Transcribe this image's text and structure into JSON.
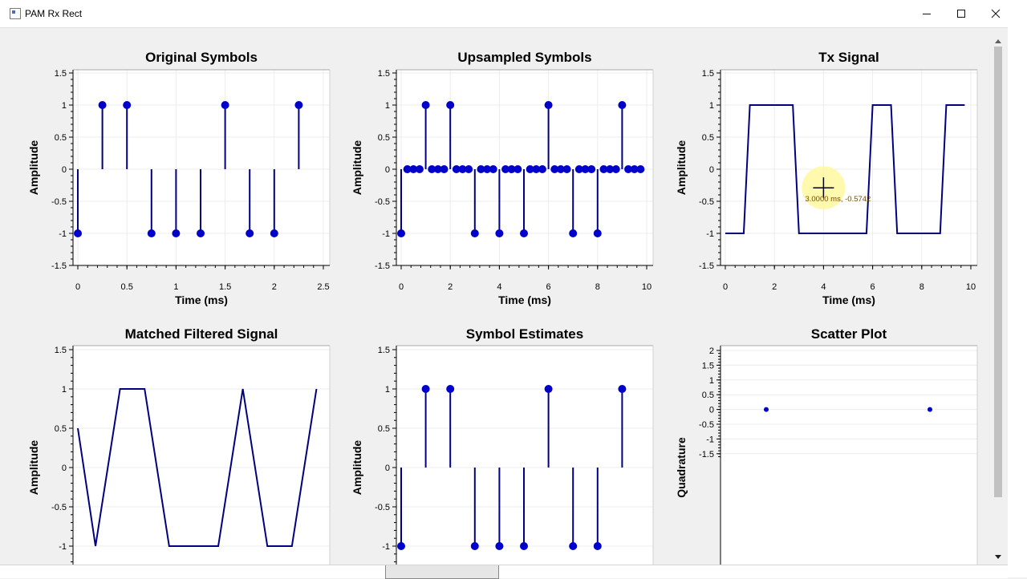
{
  "window": {
    "title": "PAM Rx Rect"
  },
  "cursor_readout": "3.0000 ms, -0.5742",
  "colors": {
    "signal": "#0000cc",
    "line": "#000080",
    "highlight": "#fff8a0"
  },
  "chart_data": [
    {
      "type": "stem",
      "title": "Original Symbols",
      "xlabel": "Time (ms)",
      "ylabel": "Amplitude",
      "xlim": [
        0,
        2.5
      ],
      "ylim": [
        -1.5,
        1.5
      ],
      "xticks": [
        0,
        0.5,
        1,
        1.5,
        2,
        2.5
      ],
      "yticks": [
        -1.5,
        -1,
        -0.5,
        0,
        0.5,
        1,
        1.5
      ],
      "x": [
        0,
        0.25,
        0.5,
        0.75,
        1,
        1.25,
        1.5,
        1.75,
        2,
        2.25
      ],
      "y": [
        -1,
        1,
        1,
        -1,
        -1,
        -1,
        1,
        -1,
        -1,
        1
      ]
    },
    {
      "type": "stem",
      "title": "Upsampled Symbols",
      "xlabel": "Time (ms)",
      "ylabel": "Amplitude",
      "xlim": [
        0,
        10
      ],
      "ylim": [
        -1.5,
        1.5
      ],
      "xticks": [
        0,
        2,
        4,
        6,
        8,
        10
      ],
      "yticks": [
        -1.5,
        -1,
        -0.5,
        0,
        0.5,
        1,
        1.5
      ],
      "x": [
        0,
        0.25,
        0.5,
        0.75,
        1,
        1.25,
        1.5,
        1.75,
        2,
        2.25,
        2.5,
        2.75,
        3,
        3.25,
        3.5,
        3.75,
        4,
        4.25,
        4.5,
        4.75,
        5,
        5.25,
        5.5,
        5.75,
        6,
        6.25,
        6.5,
        6.75,
        7,
        7.25,
        7.5,
        7.75,
        8,
        8.25,
        8.5,
        8.75,
        9,
        9.25,
        9.5,
        9.75
      ],
      "y": [
        -1,
        0,
        0,
        0,
        1,
        0,
        0,
        0,
        1,
        0,
        0,
        0,
        -1,
        0,
        0,
        0,
        -1,
        0,
        0,
        0,
        -1,
        0,
        0,
        0,
        1,
        0,
        0,
        0,
        -1,
        0,
        0,
        0,
        -1,
        0,
        0,
        0,
        1,
        0,
        0,
        0
      ]
    },
    {
      "type": "line",
      "title": "Tx Signal",
      "xlabel": "Time (ms)",
      "ylabel": "Amplitude",
      "xlim": [
        0,
        10
      ],
      "ylim": [
        -1.5,
        1.5
      ],
      "xticks": [
        0,
        2,
        4,
        6,
        8,
        10
      ],
      "yticks": [
        -1.5,
        -1,
        -0.5,
        0,
        0.5,
        1,
        1.5
      ],
      "x": [
        0,
        0.75,
        1,
        2.75,
        3,
        5.75,
        6,
        6.75,
        7,
        8.75,
        9,
        9.75
      ],
      "y": [
        -1,
        -1,
        1,
        1,
        -1,
        -1,
        1,
        1,
        -1,
        -1,
        1,
        1
      ]
    },
    {
      "type": "line",
      "title": "Matched Filtered Signal",
      "xlabel": "",
      "ylabel": "Amplitude",
      "xlim": [
        0,
        2.5
      ],
      "ylim": [
        -1.2,
        1.5
      ],
      "xticks": [],
      "yticks": [
        -1,
        -0.5,
        0,
        0.5,
        1,
        1.5
      ],
      "x": [
        0,
        0.18,
        0.43,
        0.68,
        0.93,
        1.43,
        1.68,
        1.93,
        2.18,
        2.43
      ],
      "y": [
        0.5,
        -1,
        1,
        1,
        -1,
        -1,
        1,
        -1,
        -1,
        1
      ]
    },
    {
      "type": "stem",
      "title": "Symbol Estimates",
      "xlabel": "",
      "ylabel": "Amplitude",
      "xlim": [
        0,
        10
      ],
      "ylim": [
        -1.2,
        1.5
      ],
      "xticks": [],
      "yticks": [
        -1,
        -0.5,
        0,
        0.5,
        1,
        1.5
      ],
      "x": [
        0,
        1,
        2,
        3,
        4,
        5,
        6,
        7,
        8,
        9
      ],
      "y": [
        -1,
        1,
        1,
        -1,
        -1,
        -1,
        1,
        -1,
        -1,
        1
      ]
    },
    {
      "type": "scatter",
      "title": "Scatter Plot",
      "xlabel": "",
      "ylabel": "Quadrature",
      "xlim": [
        -1.5,
        1.5
      ],
      "ylim": [
        -1.6,
        2
      ],
      "xticks": [],
      "yticks": [
        -1.5,
        -1,
        -0.5,
        0,
        0.5,
        1,
        1.5,
        2
      ],
      "x": [
        -1,
        1
      ],
      "y": [
        0,
        0
      ]
    }
  ]
}
